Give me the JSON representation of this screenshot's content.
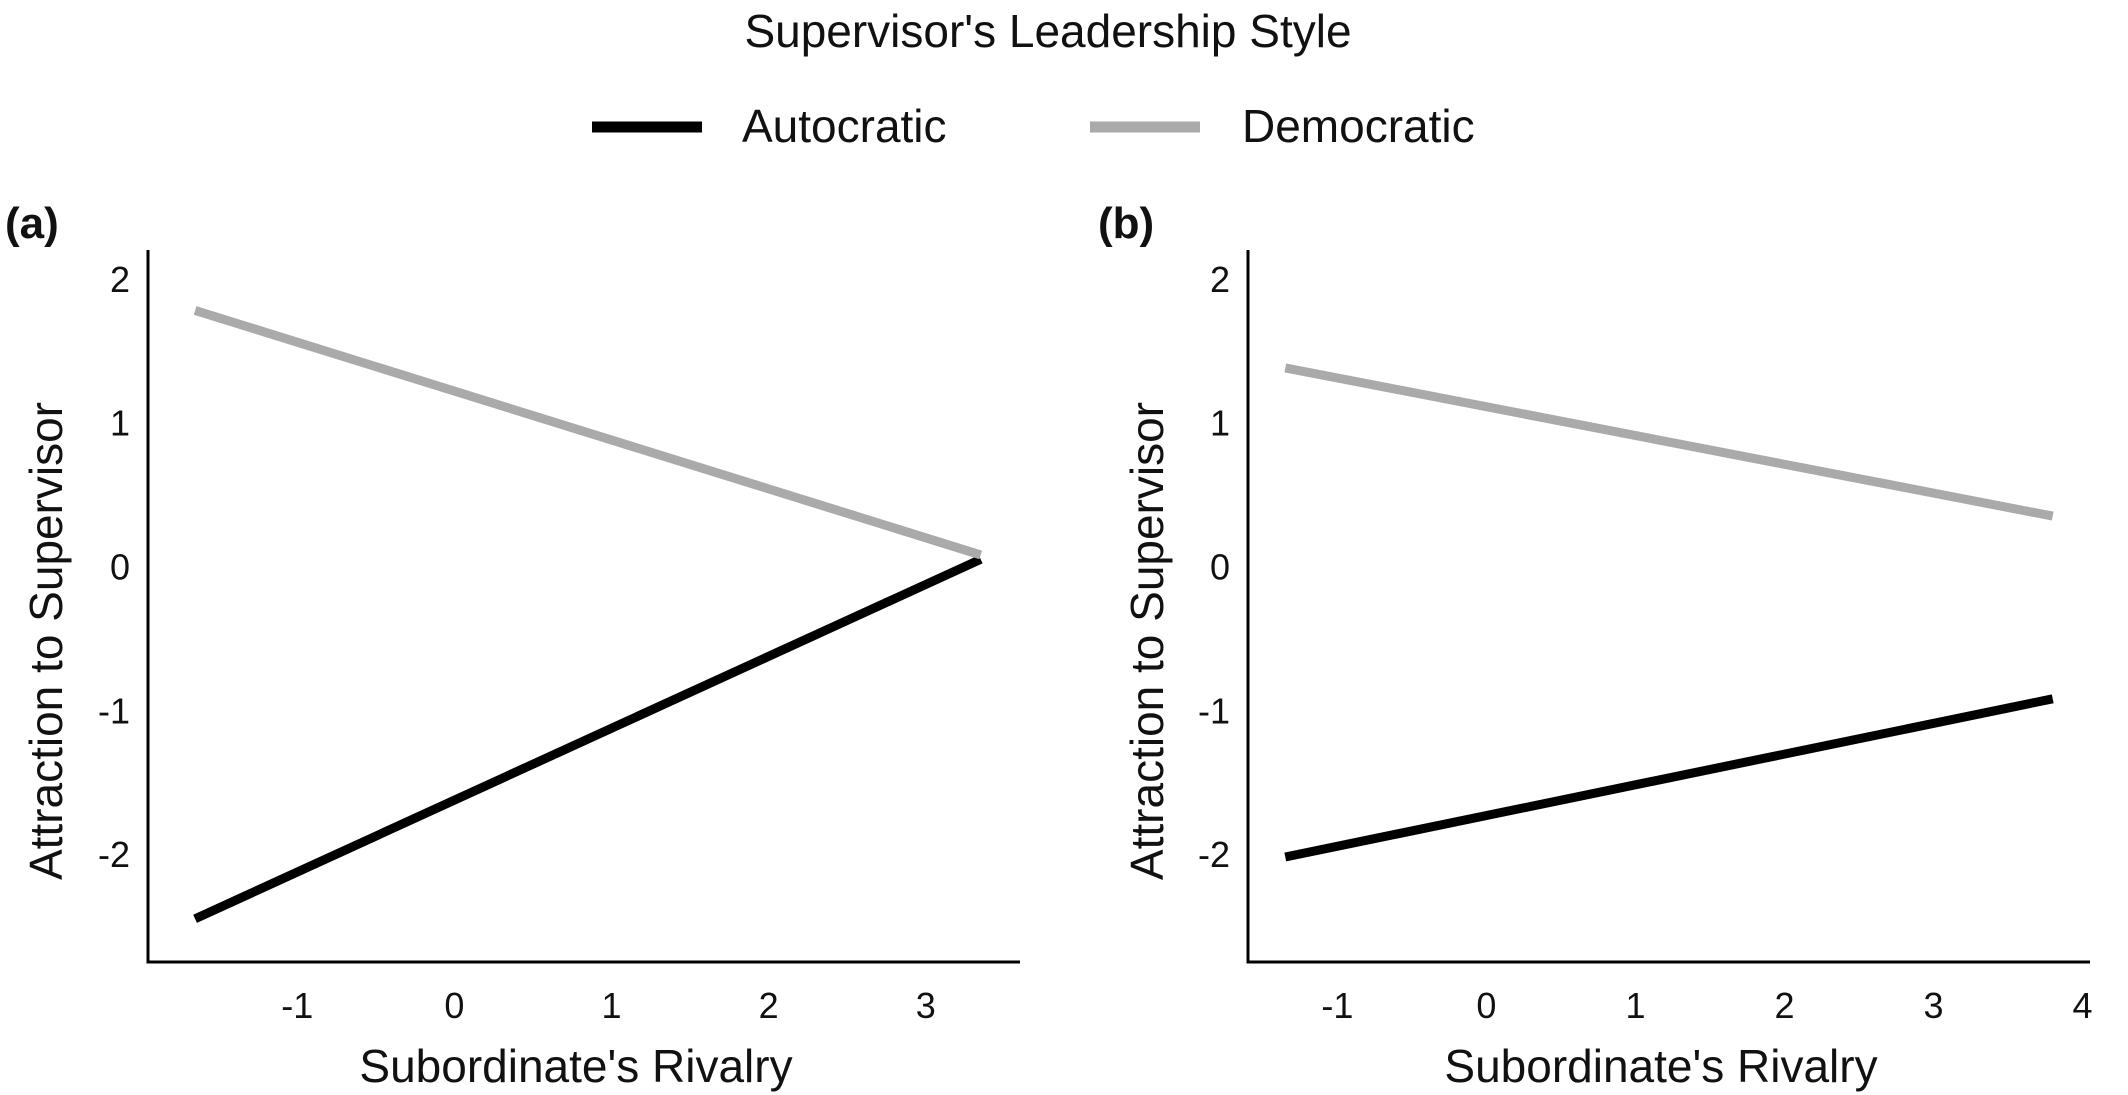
{
  "legend": {
    "title": "Supervisor's Leadership Style",
    "entries": [
      {
        "label": "Autocratic",
        "color": "#000000"
      },
      {
        "label": "Democratic",
        "color": "#aaaaaa"
      }
    ]
  },
  "chart_data": [
    {
      "type": "line",
      "panel_label": "(a)",
      "xlabel": "Subordinate's Rivalry",
      "ylabel": "Attraction to Supervisor",
      "xlim": [
        -1.95,
        3.6
      ],
      "ylim": [
        -2.75,
        2.2
      ],
      "xticks": [
        -1,
        0,
        1,
        2,
        3
      ],
      "yticks": [
        -2,
        -1,
        0,
        1,
        2
      ],
      "grid": false,
      "series": [
        {
          "name": "Autocratic",
          "color": "#000000",
          "x": [
            -1.65,
            3.35
          ],
          "y": [
            -2.45,
            0.05
          ]
        },
        {
          "name": "Democratic",
          "color": "#aaaaaa",
          "x": [
            -1.65,
            3.35
          ],
          "y": [
            1.78,
            0.08
          ]
        }
      ]
    },
    {
      "type": "line",
      "panel_label": "(b)",
      "xlabel": "Subordinate's Rivalry",
      "ylabel": "Attraction to Supervisor",
      "xlim": [
        -1.6,
        4.05
      ],
      "ylim": [
        -2.75,
        2.2
      ],
      "xticks": [
        -1,
        0,
        1,
        2,
        3,
        4
      ],
      "yticks": [
        -2,
        -1,
        0,
        1,
        2
      ],
      "grid": false,
      "series": [
        {
          "name": "Autocratic",
          "color": "#000000",
          "x": [
            -1.35,
            3.8
          ],
          "y": [
            -2.02,
            -0.92
          ]
        },
        {
          "name": "Democratic",
          "color": "#aaaaaa",
          "x": [
            -1.35,
            3.8
          ],
          "y": [
            1.38,
            0.35
          ]
        }
      ]
    }
  ]
}
